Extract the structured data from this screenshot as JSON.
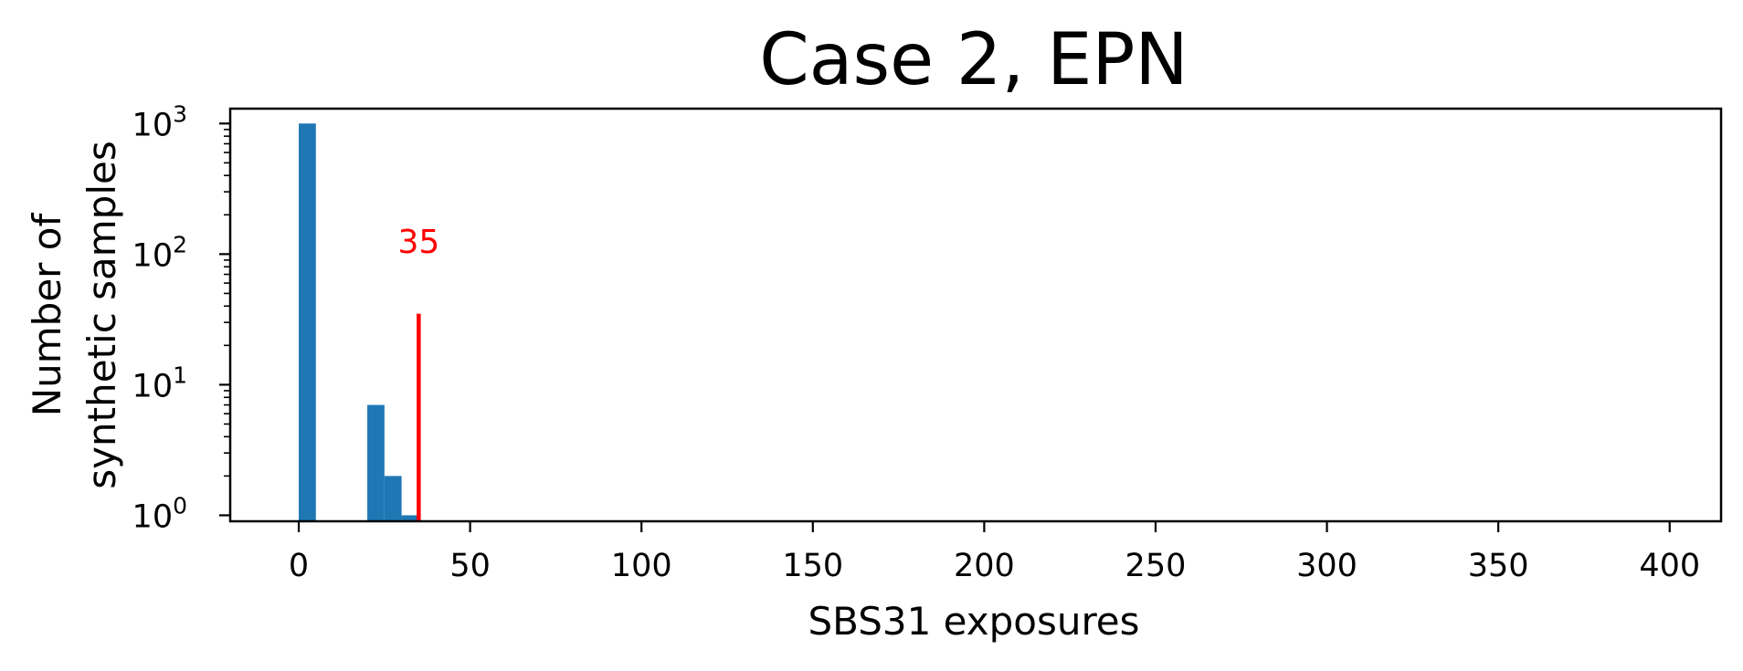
{
  "chart_data": {
    "type": "bar",
    "title": "Case 2, EPN",
    "xlabel": "SBS31 exposures",
    "ylabel_lines": [
      "Number of",
      "synthetic samples"
    ],
    "y_scale": "log",
    "xlim": [
      -20,
      415
    ],
    "ylim": [
      0.9,
      1300
    ],
    "x_ticks": [
      0,
      50,
      100,
      150,
      200,
      250,
      300,
      350,
      400
    ],
    "x_tick_labels": [
      "0",
      "50",
      "100",
      "150",
      "200",
      "250",
      "300",
      "350",
      "400"
    ],
    "y_ticks": [
      1,
      10,
      100,
      1000
    ],
    "y_tick_labels": [
      {
        "base": "10",
        "exp": "0"
      },
      {
        "base": "10",
        "exp": "1"
      },
      {
        "base": "10",
        "exp": "2"
      },
      {
        "base": "10",
        "exp": "3"
      }
    ],
    "bin_width": 5,
    "bars": [
      {
        "x": 0,
        "value": 1000
      },
      {
        "x": 20,
        "value": 7
      },
      {
        "x": 25,
        "value": 2
      },
      {
        "x": 30,
        "value": 1
      }
    ],
    "bar_color": "#1f77b4",
    "marker": {
      "x": 35,
      "value": 35,
      "label": "35",
      "color": "#ff0000"
    },
    "grid": false
  }
}
